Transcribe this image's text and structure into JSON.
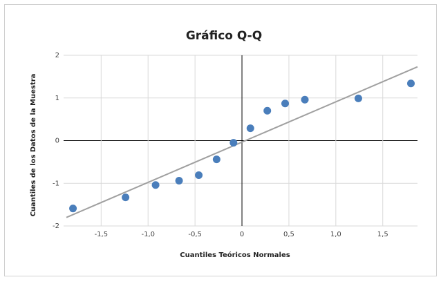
{
  "chart_data": {
    "type": "scatter",
    "title": "Gráfico Q-Q",
    "x_label": "Cuantiles Teóricos Normales",
    "y_label": "Cuantiles de los Datos de la Muestra",
    "x": [
      -1.8,
      -1.24,
      -0.92,
      -0.67,
      -0.46,
      -0.27,
      -0.09,
      0.09,
      0.27,
      0.46,
      0.67,
      1.24,
      1.8
    ],
    "values": [
      -1.59,
      -1.33,
      -1.04,
      -0.94,
      -0.81,
      -0.44,
      -0.05,
      0.29,
      0.7,
      0.87,
      0.96,
      0.99,
      1.34
    ],
    "color": "#4a7ebb",
    "line": {
      "x": [
        -1.87,
        1.87
      ],
      "values": [
        -1.8,
        1.73
      ],
      "color": "#a0a0a0"
    },
    "xlim": [
      -1.9,
      1.87
    ],
    "xticks": [
      {
        "value": -1.5,
        "label": "-1,5"
      },
      {
        "value": -1.0,
        "label": "-1,0"
      },
      {
        "value": -0.5,
        "label": "-0,5"
      },
      0,
      {
        "value": 0.5,
        "label": "0,5"
      },
      {
        "value": 1.0,
        "label": "1,0"
      },
      {
        "value": 1.5,
        "label": "1,5"
      }
    ],
    "ylim": [
      -2,
      2
    ],
    "yticks": [
      -2,
      -1,
      0,
      1,
      2
    ],
    "grid": true
  }
}
